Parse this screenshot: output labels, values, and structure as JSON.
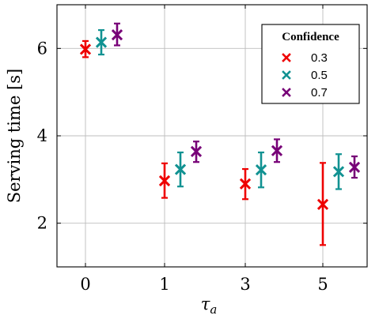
{
  "chart_data": {
    "type": "scatter",
    "xlabel": "τ",
    "xlabel_subscript": "a",
    "ylabel": "Serving time [s]",
    "categories": [
      "0",
      "1",
      "3",
      "5"
    ],
    "ylim": [
      1,
      7
    ],
    "yticks": [
      2,
      4,
      6
    ],
    "grid": true,
    "legend": {
      "title": "Confidence",
      "placement": "top-right"
    },
    "series": [
      {
        "name": "0.3",
        "color": "#ee0000",
        "marker": "x",
        "values": [
          5.98,
          2.97,
          2.9,
          2.43
        ],
        "lower": [
          5.8,
          2.58,
          2.55,
          1.5
        ],
        "upper": [
          6.17,
          3.37,
          3.24,
          3.38
        ]
      },
      {
        "name": "0.5",
        "color": "#119292",
        "marker": "x",
        "values": [
          6.14,
          3.23,
          3.22,
          3.18
        ],
        "lower": [
          5.86,
          2.84,
          2.82,
          2.78
        ],
        "upper": [
          6.42,
          3.62,
          3.62,
          3.58
        ]
      },
      {
        "name": "0.7",
        "color": "#770077",
        "marker": "x",
        "values": [
          6.31,
          3.64,
          3.66,
          3.28
        ],
        "lower": [
          6.07,
          3.4,
          3.4,
          3.04
        ],
        "upper": [
          6.57,
          3.87,
          3.92,
          3.53
        ]
      }
    ]
  }
}
